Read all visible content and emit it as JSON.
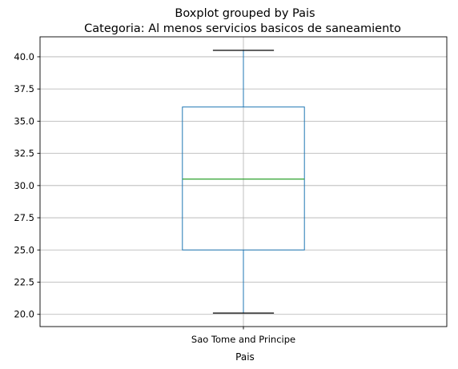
{
  "suptitle": "Boxplot grouped by Pais",
  "chart_data": {
    "type": "boxplot",
    "title": "Categoria: Al menos servicios basicos de saneamiento",
    "xlabel": "Pais",
    "ylabel": "",
    "categories": [
      "Sao Tome and Principe"
    ],
    "boxes": [
      {
        "category": "Sao Tome and Principe",
        "whisker_low": 20.1,
        "q1": 25.0,
        "median": 30.5,
        "q3": 36.1,
        "whisker_high": 40.5
      }
    ],
    "ylim": [
      19.05,
      41.55
    ],
    "yticks": [
      20.0,
      22.5,
      25.0,
      27.5,
      30.0,
      32.5,
      35.0,
      37.5,
      40.0
    ],
    "ytick_labels": [
      "20.0",
      "22.5",
      "25.0",
      "27.5",
      "30.0",
      "32.5",
      "35.0",
      "37.5",
      "40.0"
    ],
    "grid": true,
    "colors": {
      "box": "#1f77b4",
      "median": "#2ca02c",
      "whisker": "#1f77b4",
      "cap": "#000000",
      "grid": "#b0b0b0"
    }
  }
}
